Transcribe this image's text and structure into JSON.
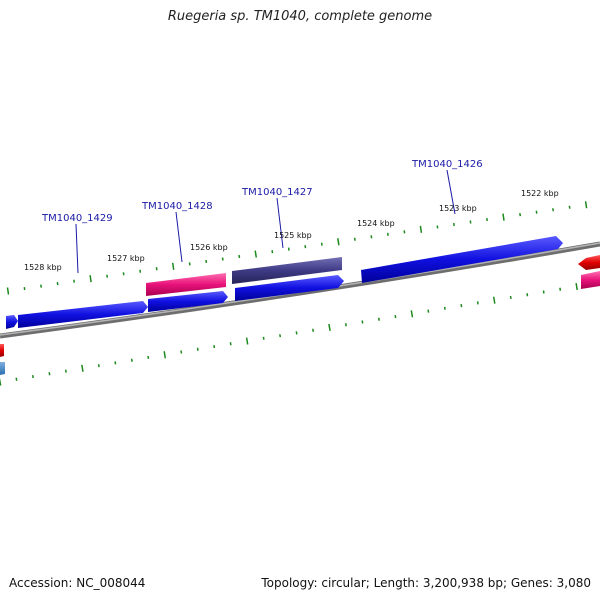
{
  "title": "Ruegeria sp. TM1040, complete genome",
  "footer": {
    "accession": "Accession: NC_008044",
    "summary": "Topology: circular; Length: 3,200,938 bp; Genes: 3,080"
  },
  "colors": {
    "blue_gene": "#1010e0",
    "pink_gene": "#e8127a",
    "purple_gene": "#3e3a85",
    "red_gene": "#e00000",
    "backbone": "#808080",
    "tick": "#1e8a1e",
    "label": "#1a1aa6"
  },
  "gene_labels": [
    "TM1040_1429",
    "TM1040_1428",
    "TM1040_1427",
    "TM1040_1426"
  ],
  "kbp_labels": [
    "1528 kbp",
    "1527 kbp",
    "1526 kbp",
    "1525 kbp",
    "1524 kbp",
    "1523 kbp",
    "1522 kbp"
  ]
}
